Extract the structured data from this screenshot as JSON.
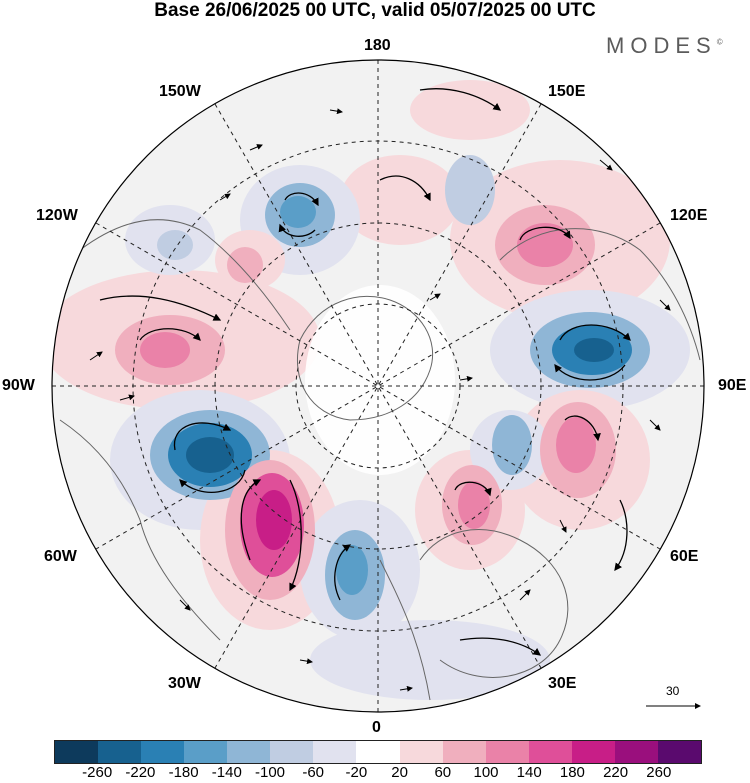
{
  "title": "Base 26/06/2025 00 UTC, valid 05/07/2025 00 UTC",
  "logo": "MODES",
  "logo_mark": "©",
  "meridian_labels": {
    "top": "180",
    "bottom": "0",
    "left": "90W",
    "right": "90E",
    "upper_left_1": "150W",
    "upper_left_2": "120W",
    "lower_left_1": "60W",
    "lower_left_2": "30W",
    "upper_right_1": "150E",
    "upper_right_2": "120E",
    "lower_right_1": "60E",
    "lower_right_2": "30E"
  },
  "vector_scale": "30",
  "colorbar": {
    "ticks": [
      "-260",
      "-220",
      "-180",
      "-140",
      "-100",
      "-60",
      "-20",
      "20",
      "60",
      "100",
      "140",
      "180",
      "220",
      "260"
    ],
    "colors": [
      "#0d3a5c",
      "#17618f",
      "#2a80b4",
      "#5a9ec8",
      "#8fb6d6",
      "#c0cde2",
      "#e1e2ef",
      "#ffffff",
      "#f7d9dc",
      "#f0afbe",
      "#ea82a8",
      "#df4f99",
      "#c81e87",
      "#9a0f7d",
      "#5a0a6e"
    ]
  },
  "anomaly_centers": [
    {
      "name": "neg-north-atlantic",
      "level": -220
    },
    {
      "name": "neg-siberia-east",
      "level": -200
    },
    {
      "name": "pos-central-atlantic",
      "level": 200
    },
    {
      "name": "pos-west-siberia",
      "level": 160
    },
    {
      "name": "pos-east-siberia",
      "level": 140
    },
    {
      "name": "neg-europe",
      "level": -140
    }
  ]
}
